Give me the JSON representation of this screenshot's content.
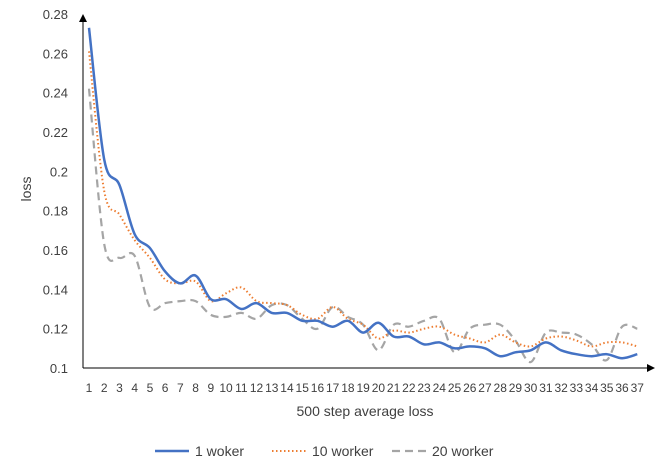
{
  "chart_data": {
    "type": "line",
    "title": "",
    "xlabel": "500 step average loss",
    "ylabel": "loss",
    "ylim": [
      0.1,
      0.28
    ],
    "yticks": [
      "0.1",
      "0.12",
      "0.14",
      "0.16",
      "0.18",
      "0.2",
      "0.22",
      "0.24",
      "0.26",
      "0.28"
    ],
    "grid": false,
    "legend_position": "bottom",
    "categories": [
      "1",
      "2",
      "3",
      "4",
      "5",
      "6",
      "7",
      "8",
      "9",
      "10",
      "11",
      "12",
      "13",
      "14",
      "15",
      "16",
      "17",
      "18",
      "19",
      "20",
      "21",
      "22",
      "23",
      "24",
      "25",
      "26",
      "27",
      "28",
      "29",
      "30",
      "31",
      "32",
      "33",
      "34",
      "35",
      "36",
      "37"
    ],
    "series": [
      {
        "name": "1 woker",
        "color": "#4472C4",
        "style": "solid",
        "values": [
          0.273,
          0.206,
          0.193,
          0.168,
          0.161,
          0.149,
          0.143,
          0.147,
          0.135,
          0.135,
          0.13,
          0.133,
          0.128,
          0.128,
          0.124,
          0.124,
          0.121,
          0.124,
          0.118,
          0.123,
          0.116,
          0.116,
          0.112,
          0.113,
          0.11,
          0.111,
          0.11,
          0.106,
          0.108,
          0.109,
          0.113,
          0.109,
          0.107,
          0.106,
          0.107,
          0.105,
          0.107
        ]
      },
      {
        "name": "10 worker",
        "color": "#ED7D31",
        "style": "dotted",
        "values": [
          0.261,
          0.19,
          0.178,
          0.165,
          0.156,
          0.145,
          0.143,
          0.144,
          0.134,
          0.138,
          0.141,
          0.134,
          0.133,
          0.132,
          0.127,
          0.125,
          0.131,
          0.125,
          0.122,
          0.115,
          0.119,
          0.118,
          0.12,
          0.121,
          0.117,
          0.115,
          0.113,
          0.117,
          0.113,
          0.111,
          0.115,
          0.116,
          0.114,
          0.111,
          0.113,
          0.113,
          0.111
        ]
      },
      {
        "name": "20 worker",
        "color": "#A5A5A5",
        "style": "dashed",
        "values": [
          0.242,
          0.163,
          0.156,
          0.157,
          0.131,
          0.133,
          0.134,
          0.134,
          0.127,
          0.126,
          0.128,
          0.125,
          0.132,
          0.132,
          0.125,
          0.12,
          0.131,
          0.126,
          0.122,
          0.109,
          0.122,
          0.121,
          0.124,
          0.125,
          0.108,
          0.12,
          0.122,
          0.122,
          0.114,
          0.103,
          0.118,
          0.118,
          0.117,
          0.112,
          0.104,
          0.121,
          0.12
        ]
      }
    ]
  }
}
